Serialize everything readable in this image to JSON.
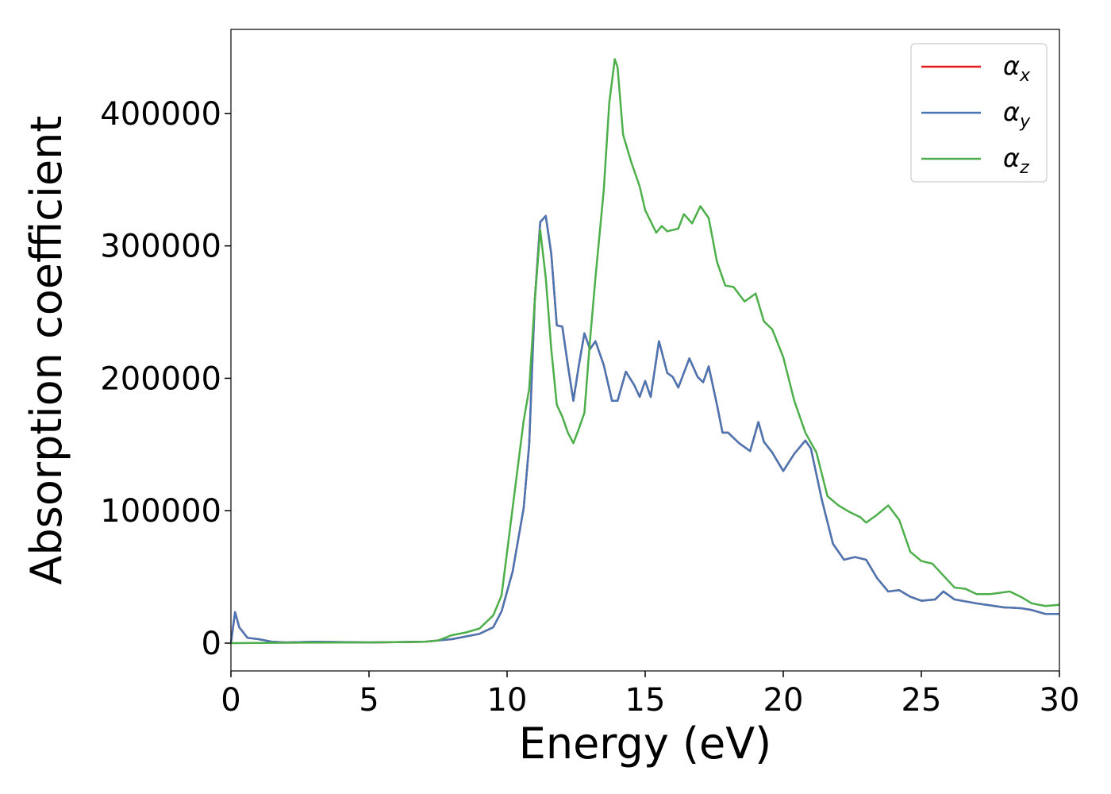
{
  "chart_data": {
    "type": "line",
    "xlabel": "Energy (eV)",
    "ylabel": "Absorption coefficient",
    "xlim": [
      0,
      30
    ],
    "ylim": [
      -21000,
      463500
    ],
    "xticks": [
      0,
      5,
      10,
      15,
      20,
      25,
      30
    ],
    "yticks": [
      0,
      100000,
      200000,
      300000,
      400000
    ],
    "legend": "upper right",
    "series": [
      {
        "name": "αx",
        "color": "#e41a1c",
        "x": [
          0,
          0.15,
          0.3,
          0.6,
          1,
          1.5,
          2,
          3,
          5,
          7,
          8,
          9,
          9.5,
          9.8,
          10.2,
          10.6,
          10.8,
          11.0,
          11.2,
          11.4,
          11.6,
          11.8,
          12.0,
          12.2,
          12.4,
          12.6,
          12.8,
          13.0,
          13.2,
          13.5,
          13.8,
          14.0,
          14.3,
          14.6,
          14.8,
          15.0,
          15.2,
          15.5,
          15.8,
          16.0,
          16.2,
          16.6,
          16.9,
          17.1,
          17.3,
          17.6,
          17.8,
          18.0,
          18.4,
          18.8,
          19.1,
          19.3,
          19.6,
          20.0,
          20.4,
          20.8,
          21.0,
          21.4,
          21.8,
          22.2,
          22.6,
          23.0,
          23.4,
          23.8,
          24.2,
          24.6,
          25.0,
          25.5,
          25.8,
          26.2,
          27,
          28,
          28.6,
          29,
          29.5,
          30
        ],
        "values": [
          0,
          23400,
          12000,
          4000,
          3000,
          1000,
          500,
          1000,
          500,
          1000,
          3000,
          7000,
          12000,
          24000,
          54000,
          102000,
          150000,
          258000,
          318000,
          322600,
          294000,
          240000,
          239000,
          210000,
          183000,
          210000,
          234000,
          222000,
          228000,
          210000,
          183000,
          183000,
          205000,
          195000,
          186000,
          198000,
          186000,
          228000,
          204000,
          201000,
          193000,
          215000,
          201000,
          197000,
          209000,
          180000,
          159000,
          159000,
          151000,
          145000,
          167000,
          152000,
          144000,
          130000,
          143000,
          153000,
          147000,
          108000,
          75000,
          63000,
          65000,
          63000,
          49000,
          39000,
          40000,
          35000,
          32000,
          33000,
          39000,
          33000,
          30000,
          27000,
          26400,
          25000,
          22000,
          22000
        ]
      },
      {
        "name": "αy",
        "color": "#4a77b4",
        "x": [
          0,
          0.15,
          0.3,
          0.6,
          1,
          1.5,
          2,
          3,
          5,
          7,
          8,
          9,
          9.5,
          9.8,
          10.2,
          10.6,
          10.8,
          11.0,
          11.2,
          11.4,
          11.6,
          11.8,
          12.0,
          12.2,
          12.4,
          12.6,
          12.8,
          13.0,
          13.2,
          13.5,
          13.8,
          14.0,
          14.3,
          14.6,
          14.8,
          15.0,
          15.2,
          15.5,
          15.8,
          16.0,
          16.2,
          16.6,
          16.9,
          17.1,
          17.3,
          17.6,
          17.8,
          18.0,
          18.4,
          18.8,
          19.1,
          19.3,
          19.6,
          20.0,
          20.4,
          20.8,
          21.0,
          21.4,
          21.8,
          22.2,
          22.6,
          23.0,
          23.4,
          23.8,
          24.2,
          24.6,
          25.0,
          25.5,
          25.8,
          26.2,
          27,
          28,
          28.6,
          29,
          29.5,
          30
        ],
        "values": [
          0,
          23400,
          12000,
          4000,
          3000,
          1000,
          500,
          1000,
          500,
          1000,
          3000,
          7000,
          12000,
          24000,
          54000,
          102000,
          150000,
          258000,
          318000,
          322600,
          294000,
          240000,
          239000,
          210000,
          183000,
          210000,
          234000,
          222000,
          228000,
          210000,
          183000,
          183000,
          205000,
          195000,
          186000,
          198000,
          186000,
          228000,
          204000,
          201000,
          193000,
          215000,
          201000,
          197000,
          209000,
          180000,
          159000,
          159000,
          151000,
          145000,
          167000,
          152000,
          144000,
          130000,
          143000,
          153000,
          147000,
          108000,
          75000,
          63000,
          65000,
          63000,
          49000,
          39000,
          40000,
          35000,
          32000,
          33000,
          39000,
          33000,
          30000,
          27000,
          26400,
          25000,
          22000,
          22000
        ]
      },
      {
        "name": "αz",
        "color": "#4daf4a",
        "x": [
          0,
          2,
          5,
          7,
          7.5,
          8,
          8.5,
          9,
          9.5,
          9.8,
          10.2,
          10.6,
          10.8,
          11.0,
          11.2,
          11.4,
          11.6,
          11.8,
          12.0,
          12.2,
          12.4,
          12.6,
          12.8,
          13.0,
          13.2,
          13.5,
          13.7,
          13.9,
          14.0,
          14.2,
          14.5,
          14.8,
          15.0,
          15.4,
          15.6,
          15.8,
          16.2,
          16.4,
          16.7,
          17.0,
          17.3,
          17.6,
          17.9,
          18.2,
          18.6,
          19.0,
          19.3,
          19.6,
          20,
          20.4,
          20.8,
          21.2,
          21.6,
          22.0,
          22.4,
          22.8,
          23.0,
          23.4,
          23.8,
          24.2,
          24.6,
          25.0,
          25.4,
          25.8,
          26.2,
          26.6,
          27,
          27.5,
          28.2,
          28.6,
          29,
          29.5,
          30
        ],
        "values": [
          0,
          300,
          500,
          1000,
          2000,
          6000,
          8000,
          11000,
          21000,
          36000,
          102000,
          168000,
          192000,
          258000,
          312000,
          276000,
          222000,
          180000,
          171000,
          159000,
          151000,
          162000,
          174000,
          228000,
          276000,
          342000,
          408000,
          441000,
          435000,
          384000,
          363000,
          345000,
          327000,
          310000,
          315000,
          311000,
          313000,
          324000,
          317000,
          330000,
          321000,
          288000,
          270000,
          269000,
          258000,
          264000,
          243000,
          237000,
          216000,
          183000,
          159000,
          144000,
          111000,
          104000,
          99000,
          95000,
          91000,
          97000,
          104000,
          93000,
          69000,
          62000,
          60000,
          51000,
          42000,
          41000,
          37000,
          37000,
          39000,
          35000,
          30000,
          28000,
          29000
        ]
      }
    ]
  }
}
